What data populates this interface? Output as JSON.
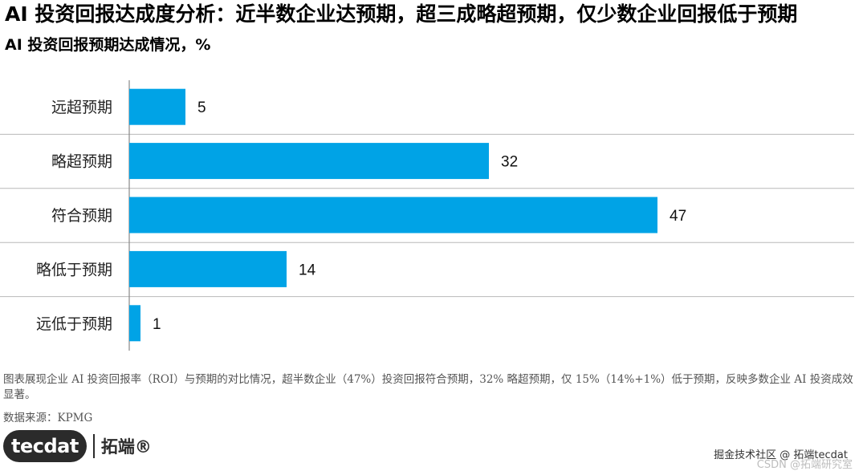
{
  "header": {
    "title": "AI 投资回报达成度分析：近半数企业达预期，超三成略超预期，仅少数企业回报低于预期",
    "subtitle": "AI 投资回报预期达成情况，%"
  },
  "footer": {
    "note": "图表展现企业 AI 投资回报率（ROI）与预期的对比情况，超半数企业（47%）投资回报符合预期，32% 略超预期，仅 15%（14%+1%）低于预期，反映多数企业 AI 投资成效显著。",
    "source": "数据来源：KPMG",
    "logo_text": "tecdat",
    "logo_cn": "拓端®",
    "watermark": "掘金技术社区 @ 拓端tecdat",
    "watermark2": "CSDN @拓端研究室"
  },
  "colors": {
    "bar": "#00A3E6",
    "grid": "#B8B8B8",
    "axis": "#888888"
  },
  "chart_data": {
    "type": "bar",
    "orientation": "horizontal",
    "categories": [
      "远超预期",
      "略超预期",
      "符合预期",
      "略低于预期",
      "远低于预期"
    ],
    "values": [
      5,
      32,
      47,
      14,
      1
    ],
    "title": "AI 投资回报预期达成情况，%",
    "xlim": [
      0,
      50
    ],
    "data_labels": true,
    "grid": "horizontal separators"
  }
}
